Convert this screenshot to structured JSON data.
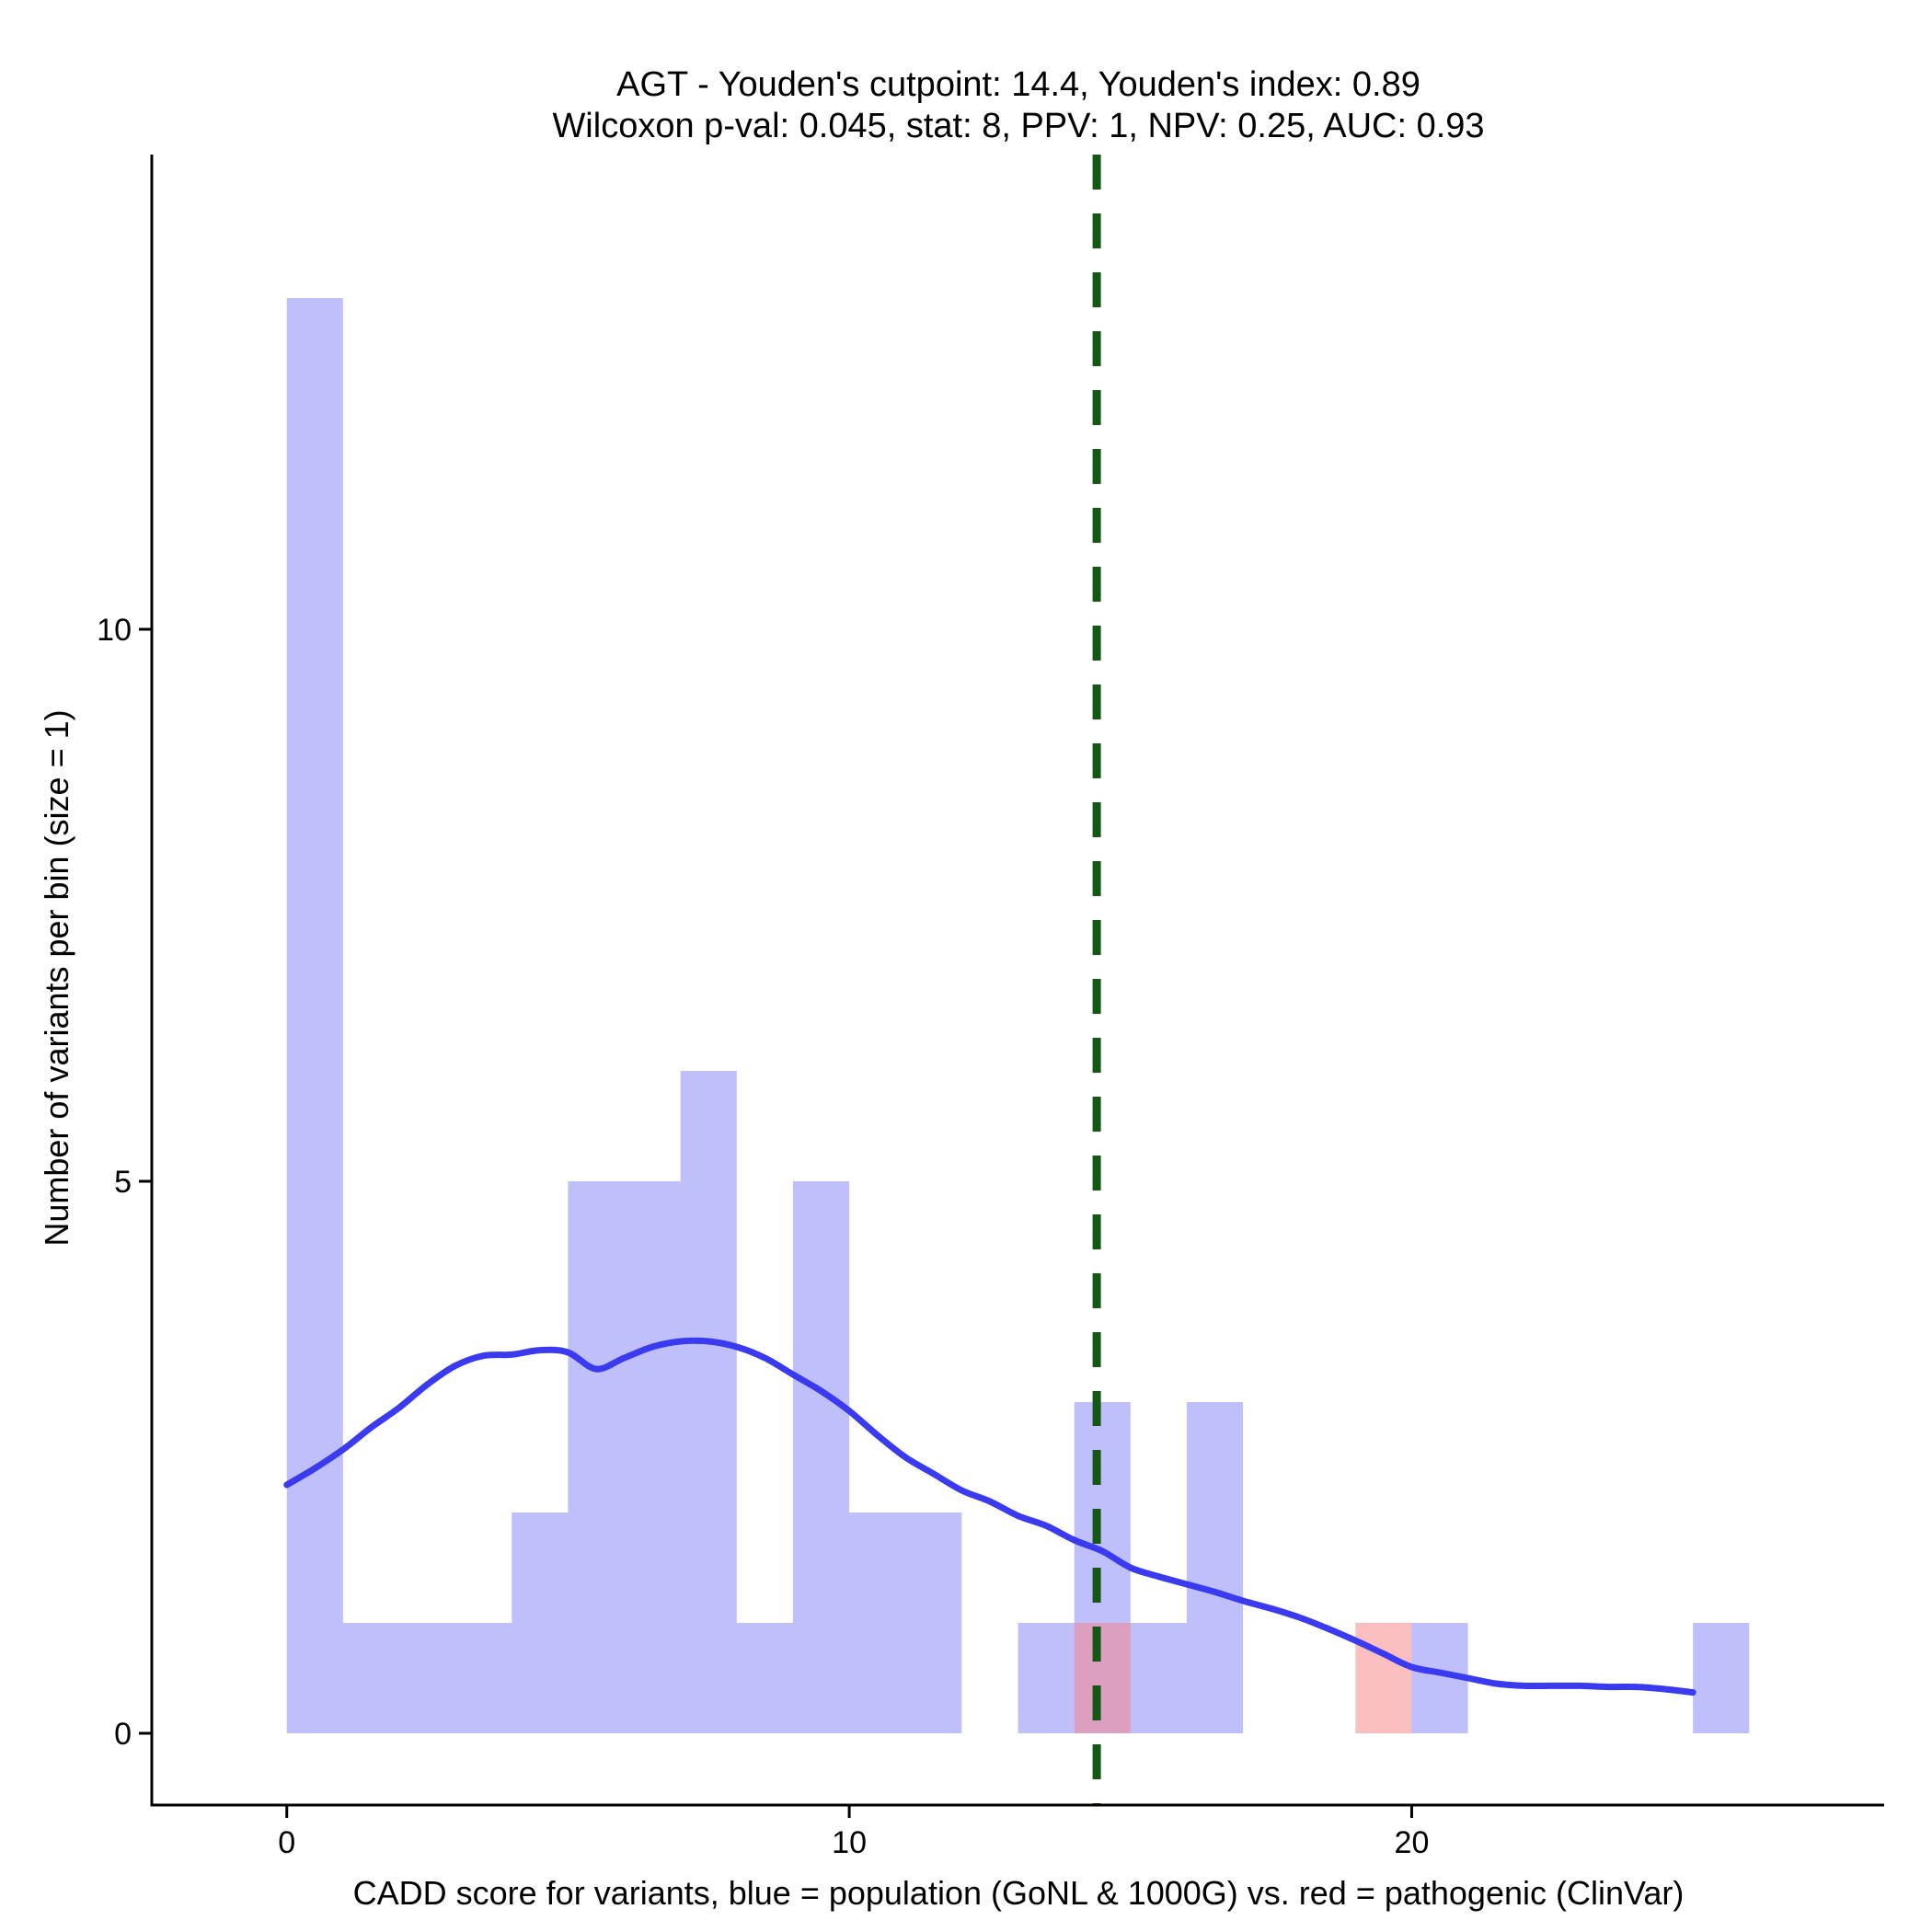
{
  "chart_data": {
    "type": "bar",
    "title": "AGT - Youden's cutpoint: 14.4, Youden's index: 0.89",
    "subtitle": "Wilcoxon p-val: 0.045, stat: 8, PPV: 1, NPV: 0.25, AUC: 0.93",
    "xlabel": "CADD score for variants, blue = population (GoNL & 1000G) vs. red = pathogenic (ClinVar)",
    "ylabel": "Number of variants per bin (size = 1)",
    "xlim": [
      -2.4,
      28.4
    ],
    "ylim": [
      -0.65,
      14.3
    ],
    "x_ticks": [
      0,
      10,
      20
    ],
    "y_ticks": [
      0,
      5,
      10
    ],
    "bin_width": 1,
    "grid": false,
    "colors": {
      "population": "#8080f8",
      "pathogenic": "#fa8080",
      "density": "#3a3af0",
      "cutpoint": "#155815"
    },
    "series": [
      {
        "key": "population",
        "bins": [
          {
            "x0": 0,
            "count": 13
          },
          {
            "x0": 1,
            "count": 1
          },
          {
            "x0": 2,
            "count": 1
          },
          {
            "x0": 3,
            "count": 1
          },
          {
            "x0": 4,
            "count": 2
          },
          {
            "x0": 5,
            "count": 5
          },
          {
            "x0": 6,
            "count": 5
          },
          {
            "x0": 7,
            "count": 6
          },
          {
            "x0": 8,
            "count": 1
          },
          {
            "x0": 9,
            "count": 5
          },
          {
            "x0": 10,
            "count": 2
          },
          {
            "x0": 11,
            "count": 2
          },
          {
            "x0": 13,
            "count": 1
          },
          {
            "x0": 14,
            "count": 3
          },
          {
            "x0": 15,
            "count": 1
          },
          {
            "x0": 16,
            "count": 3
          },
          {
            "x0": 20,
            "count": 1
          },
          {
            "x0": 25,
            "count": 1
          }
        ]
      },
      {
        "key": "pathogenic",
        "bins": [
          {
            "x0": 14,
            "count": 1
          },
          {
            "x0": 19,
            "count": 1
          }
        ]
      }
    ],
    "density_curve": {
      "x": [
        0,
        0.5,
        1,
        1.5,
        2,
        2.5,
        3,
        3.5,
        4,
        4.5,
        5,
        5.5,
        6,
        6.5,
        7,
        7.5,
        8,
        8.5,
        9,
        9.5,
        10,
        10.5,
        11,
        11.5,
        12,
        12.5,
        13,
        13.5,
        14,
        14.5,
        15,
        15.5,
        16,
        16.5,
        17,
        17.5,
        18,
        18.5,
        19,
        19.5,
        20,
        20.5,
        21,
        21.5,
        22,
        22.5,
        23,
        23.5,
        24,
        24.5,
        25
      ],
      "y": [
        2.25,
        2.4,
        2.57,
        2.77,
        2.95,
        3.16,
        3.33,
        3.42,
        3.43,
        3.47,
        3.45,
        3.3,
        3.4,
        3.5,
        3.55,
        3.55,
        3.5,
        3.4,
        3.25,
        3.1,
        2.92,
        2.7,
        2.5,
        2.35,
        2.2,
        2.1,
        1.97,
        1.88,
        1.75,
        1.65,
        1.5,
        1.42,
        1.35,
        1.28,
        1.2,
        1.13,
        1.05,
        0.95,
        0.84,
        0.72,
        0.6,
        0.55,
        0.5,
        0.45,
        0.43,
        0.43,
        0.43,
        0.42,
        0.42,
        0.4,
        0.37
      ]
    },
    "cutpoint": 14.4
  }
}
